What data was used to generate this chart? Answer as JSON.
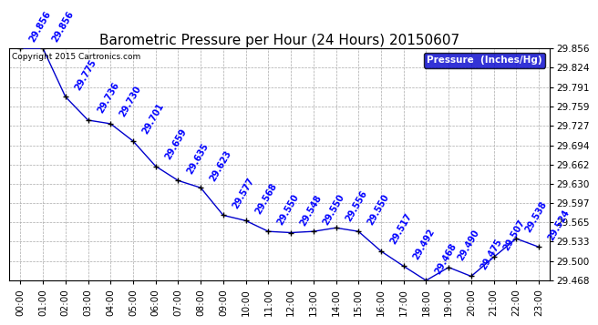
{
  "title": "Barometric Pressure per Hour (24 Hours) 20150607",
  "copyright": "Copyright 2015 Cartronics.com",
  "legend_label": "Pressure  (Inches/Hg)",
  "hours": [
    0,
    1,
    2,
    3,
    4,
    5,
    6,
    7,
    8,
    9,
    10,
    11,
    12,
    13,
    14,
    15,
    16,
    17,
    18,
    19,
    20,
    21,
    22,
    23
  ],
  "hour_labels": [
    "00:00",
    "01:00",
    "02:00",
    "03:00",
    "04:00",
    "05:00",
    "06:00",
    "07:00",
    "08:00",
    "09:00",
    "10:00",
    "11:00",
    "12:00",
    "13:00",
    "14:00",
    "15:00",
    "16:00",
    "17:00",
    "18:00",
    "19:00",
    "20:00",
    "21:00",
    "22:00",
    "23:00"
  ],
  "pressure": [
    29.856,
    29.856,
    29.775,
    29.736,
    29.73,
    29.701,
    29.659,
    29.635,
    29.623,
    29.577,
    29.568,
    29.55,
    29.548,
    29.55,
    29.556,
    29.55,
    29.517,
    29.492,
    29.468,
    29.49,
    29.475,
    29.507,
    29.538,
    29.524
  ],
  "ylim_min": 29.468,
  "ylim_max": 29.856,
  "yticks": [
    29.468,
    29.5,
    29.533,
    29.565,
    29.597,
    29.63,
    29.662,
    29.694,
    29.727,
    29.759,
    29.791,
    29.824,
    29.856
  ],
  "line_color": "#0000cc",
  "marker_color": "#000000",
  "label_color": "#0000ff",
  "background_color": "#ffffff",
  "grid_color": "#aaaaaa",
  "legend_bg": "#0000cc",
  "legend_fg": "#ffffff",
  "title_fontsize": 11,
  "label_fontsize": 7,
  "tick_fontsize": 7.5,
  "copyright_fontsize": 6.5
}
